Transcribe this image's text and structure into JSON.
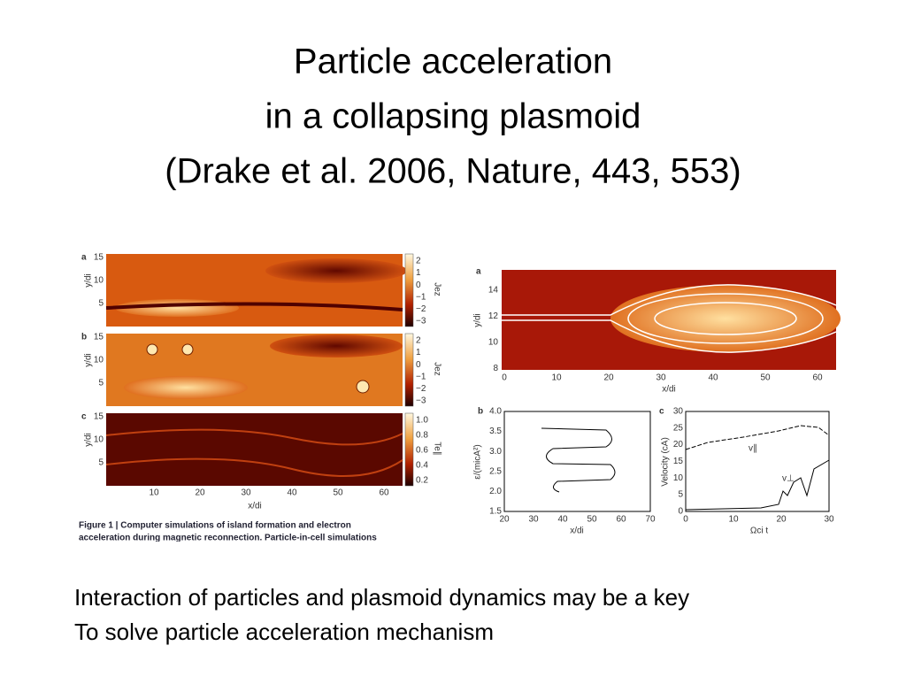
{
  "title": [
    "Particle acceleration",
    "in a collapsing plasmoid",
    "(Drake et al. 2006, Nature, 443, 553)"
  ],
  "figure_left": {
    "panels": [
      {
        "label": "a",
        "ylabel": "y/di",
        "yticks": [
          "15",
          "10",
          "5"
        ],
        "colorbar_ticks": [
          "2",
          "1",
          "0",
          "−1",
          "−2",
          "−3"
        ],
        "colorbar_label": "Jez"
      },
      {
        "label": "b",
        "ylabel": "y/di",
        "yticks": [
          "15",
          "10",
          "5"
        ],
        "colorbar_ticks": [
          "2",
          "1",
          "0",
          "−1",
          "−2",
          "−3"
        ],
        "colorbar_label": "Jez"
      },
      {
        "label": "c",
        "ylabel": "y/di",
        "yticks": [
          "15",
          "10",
          "5"
        ],
        "colorbar_ticks": [
          "1.0",
          "0.8",
          "0.6",
          "0.4",
          "0.2"
        ],
        "colorbar_label": "Te∥"
      }
    ],
    "xticks": [
      "10",
      "20",
      "30",
      "40",
      "50",
      "60"
    ],
    "xlabel": "x/di",
    "caption": [
      "Figure 1 | Computer simulations of island formation and electron",
      "acceleration during magnetic reconnection. Particle-in-cell simulations"
    ]
  },
  "figure_right": {
    "panel_a": {
      "label": "a",
      "ylabel": "y/di",
      "yticks": [
        "14",
        "12",
        "10",
        "8"
      ],
      "xticks": [
        "0",
        "10",
        "20",
        "30",
        "40",
        "50",
        "60"
      ],
      "xlabel": "x/di"
    },
    "panel_b": {
      "label": "b",
      "ylabel": "ε/(micA²)",
      "yticks": [
        "4.0",
        "3.5",
        "3.0",
        "2.5",
        "2.0",
        "1.5"
      ],
      "xticks": [
        "20",
        "30",
        "40",
        "50",
        "60",
        "70"
      ],
      "xlabel": "x/di"
    },
    "panel_c": {
      "label": "c",
      "ylabel": "Velocity (cA)",
      "yticks": [
        "30",
        "25",
        "20",
        "15",
        "10",
        "5",
        "0"
      ],
      "xticks": [
        "0",
        "10",
        "20",
        "30"
      ],
      "xlabel": "Ωci t",
      "annotations": [
        "v∥",
        "v⊥"
      ]
    }
  },
  "body": [
    "Interaction of particles and  plasmoid dynamics may be a key",
    "To solve particle acceleration mechanism"
  ]
}
